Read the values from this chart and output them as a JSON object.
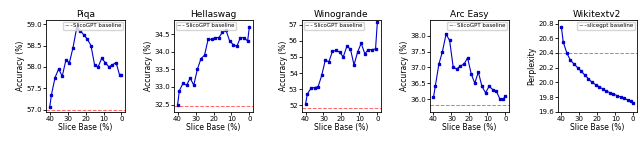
{
  "charts": [
    {
      "title": "Piqa",
      "ylabel": "Accuracy (%)",
      "xlabel": "Slice Base (%)",
      "baseline": 57.0,
      "baseline_label": "SlicoGPT baseline",
      "x": [
        40,
        39,
        37,
        35,
        33,
        31,
        29,
        27,
        25,
        23,
        21,
        19,
        17,
        15,
        13,
        11,
        9,
        7,
        5,
        3,
        1,
        0
      ],
      "y": [
        57.05,
        57.35,
        57.75,
        57.95,
        57.78,
        58.15,
        58.1,
        58.45,
        58.9,
        58.85,
        58.75,
        58.65,
        58.5,
        58.05,
        58.0,
        58.2,
        58.1,
        58.0,
        58.05,
        58.1,
        57.8,
        57.8
      ],
      "ylim": [
        56.95,
        59.1
      ],
      "yticks": [
        57.0,
        57.5,
        58.0,
        58.5,
        59.0
      ]
    },
    {
      "title": "Hellaswag",
      "ylabel": "Accuracy (%)",
      "xlabel": "Slice Base (%)",
      "baseline": 32.45,
      "baseline_label": "SlicoGPT baseline",
      "x": [
        40,
        39,
        37,
        35,
        33,
        31,
        29,
        27,
        25,
        23,
        21,
        19,
        17,
        15,
        13,
        11,
        9,
        7,
        5,
        3,
        1,
        0
      ],
      "y": [
        32.5,
        32.9,
        33.1,
        33.05,
        33.25,
        33.05,
        33.5,
        33.8,
        33.9,
        34.35,
        34.35,
        34.4,
        34.4,
        34.55,
        34.6,
        34.3,
        34.2,
        34.15,
        34.4,
        34.4,
        34.3,
        34.7
      ],
      "ylim": [
        32.3,
        34.9
      ],
      "yticks": [
        32.5,
        33.0,
        33.5,
        34.0,
        34.5
      ]
    },
    {
      "title": "Winogrande",
      "ylabel": "Accuracy (%)",
      "xlabel": "Slice Base (%)",
      "baseline": 51.8,
      "baseline_label": "SlicoGPT baseline",
      "x": [
        40,
        39,
        37,
        35,
        33,
        31,
        29,
        27,
        25,
        23,
        21,
        19,
        17,
        15,
        13,
        11,
        9,
        7,
        5,
        3,
        1,
        0
      ],
      "y": [
        52.05,
        52.7,
        53.05,
        53.1,
        53.15,
        53.85,
        54.8,
        54.7,
        55.35,
        55.4,
        55.3,
        55.0,
        55.65,
        55.5,
        54.5,
        55.3,
        55.85,
        55.2,
        55.45,
        55.45,
        55.5,
        57.15
      ],
      "ylim": [
        51.6,
        57.3
      ],
      "yticks": [
        52.0,
        53.0,
        54.0,
        55.0,
        56.0,
        57.0
      ]
    },
    {
      "title": "Arc Easy",
      "ylabel": "Accuracy (%)",
      "xlabel": "Slice Base (%)",
      "baseline": 35.8,
      "baseline_label": "SlicoGPT baseline",
      "x": [
        40,
        39,
        37,
        35,
        33,
        31,
        29,
        27,
        25,
        23,
        21,
        19,
        17,
        15,
        13,
        11,
        9,
        7,
        5,
        3,
        1,
        0
      ],
      "y": [
        36.05,
        36.4,
        37.1,
        37.5,
        38.05,
        37.85,
        37.0,
        36.95,
        37.05,
        37.1,
        37.3,
        36.8,
        36.5,
        36.85,
        36.4,
        36.2,
        36.4,
        36.3,
        36.25,
        36.0,
        36.0,
        36.1
      ],
      "ylim": [
        35.6,
        38.5
      ],
      "yticks": [
        36.0,
        36.5,
        37.0,
        37.5,
        38.0
      ]
    },
    {
      "title": "Wikitextv2",
      "ylabel": "Perplexity",
      "xlabel": "Slice Base (%)",
      "baseline": 20.4,
      "baseline_label": "slicegpt baseline",
      "x": [
        40,
        39,
        37,
        35,
        33,
        31,
        29,
        27,
        25,
        23,
        21,
        19,
        17,
        15,
        13,
        11,
        9,
        7,
        5,
        3,
        1,
        0
      ],
      "y": [
        20.75,
        20.55,
        20.4,
        20.3,
        20.25,
        20.2,
        20.15,
        20.1,
        20.05,
        20.0,
        19.97,
        19.94,
        19.91,
        19.88,
        19.86,
        19.84,
        19.82,
        19.8,
        19.78,
        19.76,
        19.74,
        19.72
      ],
      "ylim": [
        19.6,
        20.85
      ],
      "yticks": [
        19.6,
        19.8,
        20.0,
        20.2,
        20.4,
        20.6,
        20.8
      ]
    }
  ],
  "legend_positions": [
    "upper right",
    "upper left",
    "upper left",
    "upper right",
    "upper right"
  ],
  "line_color": "#0000cc",
  "baseline_color": "#ff6666",
  "marker": "s",
  "markersize": 1.8,
  "linewidth": 0.8
}
